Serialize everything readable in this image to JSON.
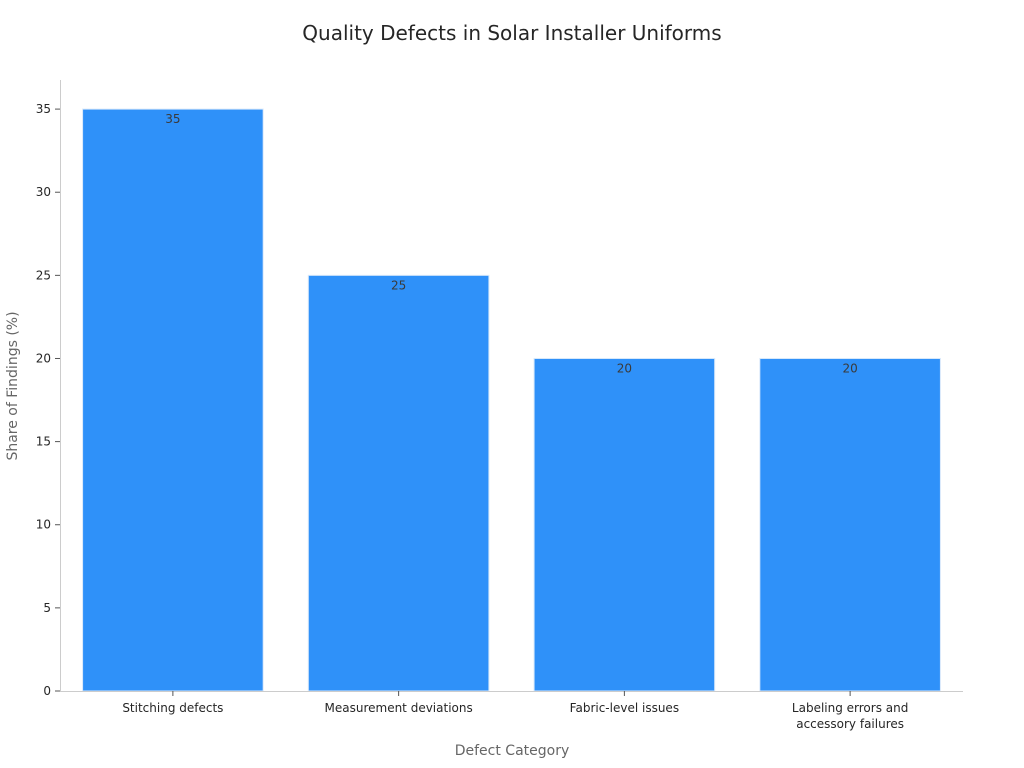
{
  "chart_data": {
    "type": "bar",
    "title": "Quality Defects in Solar Installer Uniforms",
    "xlabel": "Defect Category",
    "ylabel": "Share of Findings (%)",
    "categories": [
      "Stitching defects",
      "Measurement deviations",
      "Fabric-level issues",
      "Labeling errors and accessory failures"
    ],
    "category_lines": [
      [
        "Stitching defects"
      ],
      [
        "Measurement deviations"
      ],
      [
        "Fabric-level issues"
      ],
      [
        "Labeling errors and",
        "accessory failures"
      ]
    ],
    "values": [
      35,
      25,
      20,
      20
    ],
    "data_labels": [
      "35",
      "25",
      "20",
      "20"
    ],
    "ylim": [
      0,
      36.75
    ],
    "yticks": [
      0,
      5,
      10,
      15,
      20,
      25,
      30,
      35
    ],
    "grid": false,
    "legend": "none",
    "bar_color": "#2f91f9"
  }
}
